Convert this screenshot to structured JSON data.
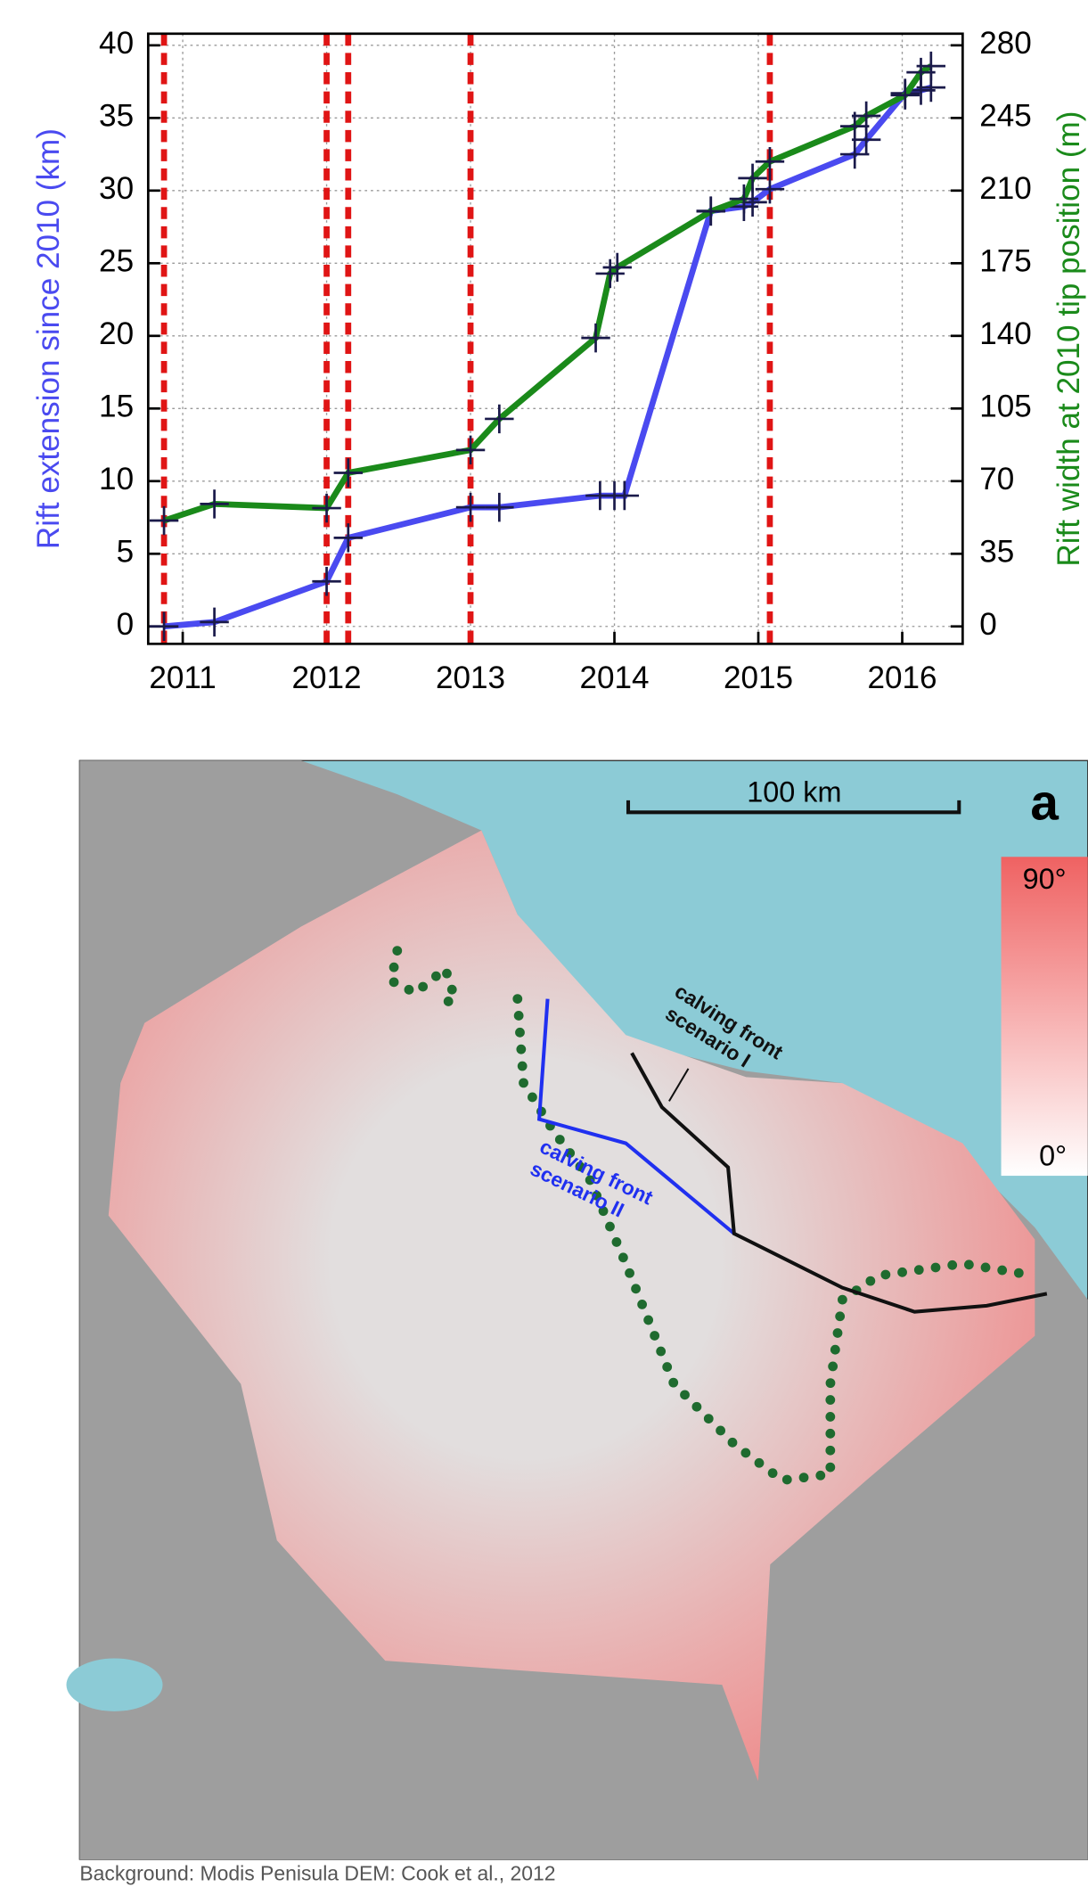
{
  "chart_data": {
    "type": "line",
    "ylabel": "Rift extension since 2010 (km)",
    "y2label": "Rift width at 2010 tip position (m)",
    "xlim": [
      2010.76,
      2016.42
    ],
    "xticks": [
      2011,
      2012,
      2013,
      2014,
      2015,
      2016
    ],
    "ylim": [
      -1.2,
      40.8
    ],
    "yticks": [
      0,
      5,
      10,
      15,
      20,
      25,
      30,
      35,
      40
    ],
    "y2lim": [
      -8.4,
      285.6
    ],
    "y2ticks": [
      0,
      35,
      70,
      105,
      140,
      175,
      210,
      245,
      280
    ],
    "grid": true,
    "vlines": [
      2010.87,
      2012.0,
      2012.15,
      2013.0,
      2015.08
    ],
    "vline_color": "#e01515",
    "series": [
      {
        "color": "#4a4af0",
        "axis": "y",
        "x": [
          2010.87,
          2011.22,
          2012.0,
          2012.15,
          2013.0,
          2013.2,
          2013.9,
          2014.0,
          2014.07,
          2014.67,
          2014.9,
          2014.96,
          2015.08,
          2015.67,
          2015.75,
          2016.02,
          2016.13,
          2016.2
        ],
        "values": [
          0,
          0.3,
          3.1,
          6.1,
          8.2,
          8.2,
          9.0,
          9.0,
          9.0,
          28.6,
          28.9,
          29.2,
          30.1,
          32.5,
          33.5,
          36.7,
          36.9,
          37.1
        ]
      },
      {
        "color": "#1a8a1a",
        "axis": "y2",
        "x": [
          2010.87,
          2011.22,
          2012.0,
          2012.15,
          2013.0,
          2013.2,
          2013.87,
          2013.97,
          2014.02,
          2014.67,
          2014.9,
          2014.96,
          2015.08,
          2015.67,
          2015.75,
          2016.02,
          2016.13,
          2016.2
        ],
        "values": [
          51,
          59,
          57,
          74,
          85,
          100,
          139,
          170,
          173,
          200,
          206,
          216,
          224,
          241,
          246,
          256,
          267,
          270
        ]
      }
    ]
  },
  "map": {
    "label": "a",
    "scale_bar": "100 km",
    "colorbar": {
      "max": "90°",
      "min": "0°"
    },
    "scenario_1": [
      "calving front",
      "scenario I"
    ],
    "scenario_2": [
      "calving front",
      "scenario II"
    ]
  },
  "caption": "Background: Modis    Penisula DEM: Cook et al., 2012"
}
